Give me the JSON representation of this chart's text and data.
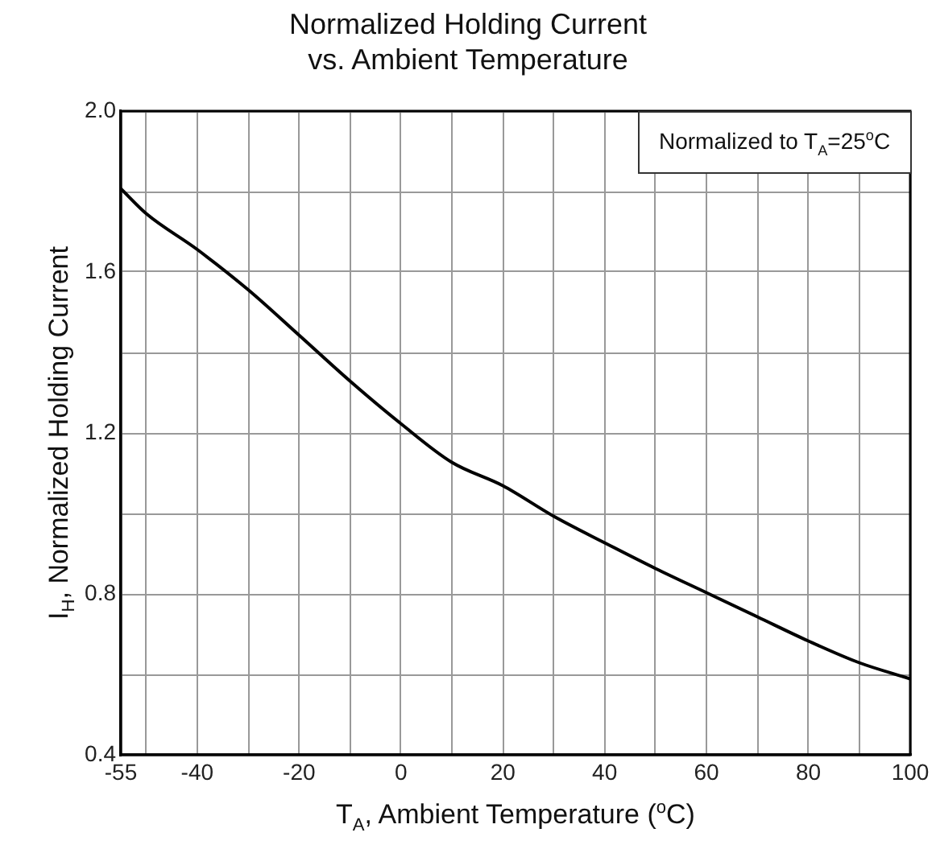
{
  "chart_data": {
    "type": "line",
    "title": "Normalized Holding Current\nvs. Ambient Temperature",
    "xlabel": "T$_{A}$, Ambient Temperature ($^{o}$C)",
    "ylabel": "I$_{H}$, Normalized Holding Current",
    "annotations": [
      "Normalized to T$_{A}$=25$^{o}$C"
    ],
    "x": [
      -55,
      -50,
      -40,
      -30,
      -20,
      -10,
      0,
      10,
      20,
      30,
      40,
      50,
      60,
      70,
      80,
      90,
      100
    ],
    "series": [
      {
        "color": "#000000",
        "values": [
          1.807,
          1.745,
          1.656,
          1.556,
          1.443,
          1.329,
          1.223,
          1.127,
          1.069,
          0.993,
          0.927,
          0.863,
          0.803,
          0.743,
          0.683,
          0.629,
          0.589
        ]
      }
    ],
    "xlim": [
      -55,
      100
    ],
    "xticks": [
      -55,
      {
        "value": -50,
        "label": null
      },
      -40,
      {
        "value": -30,
        "label": null
      },
      -20,
      {
        "value": -10,
        "label": null
      },
      0,
      {
        "value": 10,
        "label": null
      },
      20,
      {
        "value": 30,
        "label": null
      },
      40,
      {
        "value": 50,
        "label": null
      },
      60,
      {
        "value": 70,
        "label": null
      },
      80,
      {
        "value": 90,
        "label": null
      },
      100
    ],
    "ylim": [
      0.4,
      2.0
    ],
    "yticks": [
      {
        "value": 0.4,
        "label": "0.4"
      },
      {
        "value": 0.6,
        "label": null
      },
      {
        "value": 0.8,
        "label": "0.8"
      },
      {
        "value": 1.0,
        "label": null
      },
      {
        "value": 1.2,
        "label": "1.2"
      },
      {
        "value": 1.4,
        "label": null
      },
      {
        "value": 1.6,
        "label": "1.6"
      },
      {
        "value": 1.8,
        "label": null
      },
      {
        "value": 2.0,
        "label": "2.0"
      }
    ],
    "grid": true,
    "legend": false,
    "marker": "none",
    "line_style": "solid"
  }
}
